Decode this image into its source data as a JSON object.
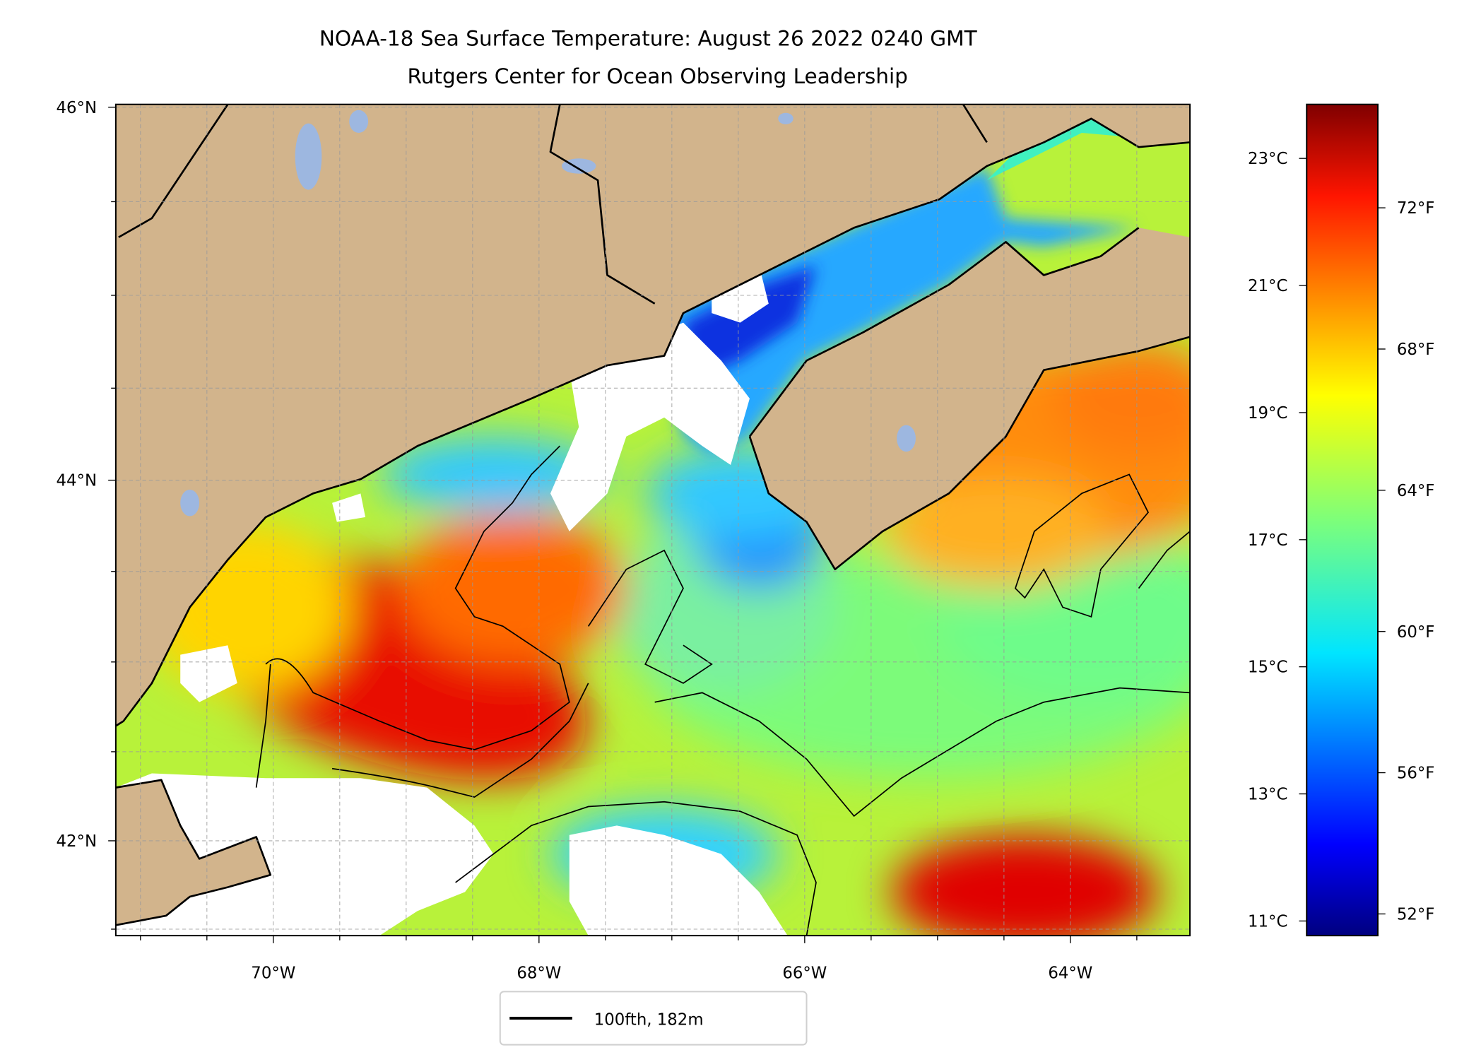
{
  "title": {
    "line1": "NOAA-18 Sea Surface Temperature: August 26 2022 0240 GMT",
    "line2": "Rutgers Center for Ocean Observing Leadership"
  },
  "chart_data": {
    "type": "heatmap",
    "projection": "mercator",
    "lon_range": [
      -71.2,
      -63.1
    ],
    "lat_range": [
      41.46,
      46.05
    ],
    "x_ticks": [
      {
        "value": -70,
        "label": "70°W"
      },
      {
        "value": -68,
        "label": "68°W"
      },
      {
        "value": -66,
        "label": "66°W"
      },
      {
        "value": -64,
        "label": "64°W"
      }
    ],
    "y_ticks": [
      {
        "value": 46,
        "label": "46°N"
      },
      {
        "value": 44,
        "label": "44°N"
      },
      {
        "value": 42,
        "label": "42°N"
      }
    ],
    "grid": true,
    "colormap": "jet",
    "colorbar": {
      "range_c": [
        10.77,
        23.85
      ],
      "celsius_ticks": [
        {
          "value": 23,
          "label": "23°C"
        },
        {
          "value": 21,
          "label": "21°C"
        },
        {
          "value": 19,
          "label": "19°C"
        },
        {
          "value": 17,
          "label": "17°C"
        },
        {
          "value": 15,
          "label": "15°C"
        },
        {
          "value": 13,
          "label": "13°C"
        },
        {
          "value": 11,
          "label": "11°C"
        }
      ],
      "fahrenheit_ticks": [
        {
          "value": 72,
          "label": "72°F"
        },
        {
          "value": 68,
          "label": "68°F"
        },
        {
          "value": 64,
          "label": "64°F"
        },
        {
          "value": 60,
          "label": "60°F"
        },
        {
          "value": 56,
          "label": "56°F"
        },
        {
          "value": 52,
          "label": "52°F"
        }
      ]
    },
    "legend": {
      "entries": [
        "100fth, 182m"
      ],
      "placement": "bottom-center"
    }
  },
  "colors": {
    "land": "#D2B48C",
    "lake": "#9DB7E0",
    "cloud": "#FFFFFF"
  }
}
